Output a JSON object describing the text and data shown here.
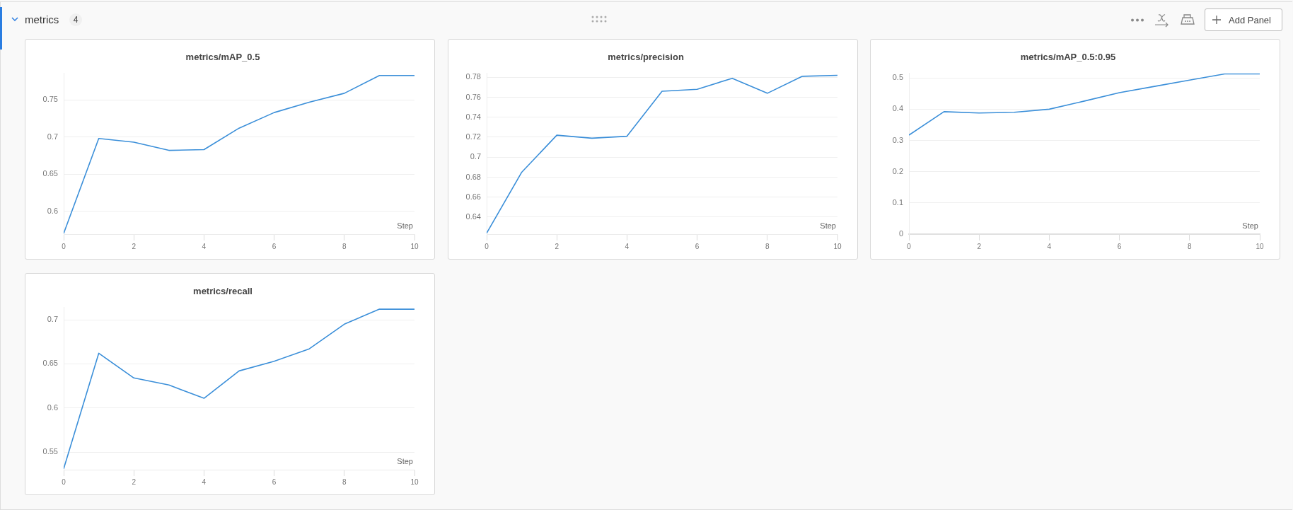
{
  "chart_data": [
    {
      "type": "other",
      "title": "metrics",
      "annotations": [
        "4",
        "Add Panel"
      ]
    },
    {
      "type": "line",
      "title": "metrics/mAP_0.5",
      "xlabel": "Step",
      "x": [
        0,
        1,
        2,
        3,
        4,
        5,
        6,
        7,
        8,
        9,
        10
      ],
      "series": [
        {
          "color": "#3b8fd9",
          "values": [
            0.57,
            0.698,
            0.693,
            0.682,
            0.683,
            0.712,
            0.733,
            0.747,
            0.759,
            0.783,
            0.783
          ]
        }
      ],
      "xlim": [
        0,
        10
      ],
      "xticks": [
        0,
        2,
        4,
        6,
        8,
        10
      ],
      "ylim": [
        0.569,
        0.786
      ],
      "yticks": [
        0.6,
        0.65,
        0.7,
        0.75
      ],
      "grid": "y"
    },
    {
      "type": "line",
      "title": "metrics/precision",
      "xlabel": "Step",
      "x": [
        0,
        1,
        2,
        3,
        4,
        5,
        6,
        7,
        8,
        9,
        10
      ],
      "series": [
        {
          "color": "#3b8fd9",
          "values": [
            0.624,
            0.685,
            0.722,
            0.719,
            0.721,
            0.766,
            0.768,
            0.779,
            0.764,
            0.781,
            0.782
          ]
        }
      ],
      "xlim": [
        0,
        10
      ],
      "xticks": [
        0,
        2,
        4,
        6,
        8,
        10
      ],
      "ylim": [
        0.623,
        0.784
      ],
      "yticks": [
        0.64,
        0.66,
        0.68,
        0.7,
        0.72,
        0.74,
        0.76,
        0.78
      ],
      "grid": "y"
    },
    {
      "type": "line",
      "title": "metrics/mAP_0.5:0.95",
      "xlabel": "Step",
      "x": [
        0,
        1,
        2,
        3,
        4,
        5,
        6,
        7,
        8,
        9,
        10
      ],
      "series": [
        {
          "color": "#3b8fd9",
          "values": [
            0.317,
            0.392,
            0.388,
            0.39,
            0.4,
            0.426,
            0.453,
            0.473,
            0.493,
            0.513,
            0.513
          ]
        }
      ],
      "xlim": [
        0,
        10
      ],
      "xticks": [
        0,
        2,
        4,
        6,
        8,
        10
      ],
      "ylim": [
        0,
        0.515
      ],
      "yticks": [
        0,
        0.1,
        0.2,
        0.3,
        0.4,
        0.5
      ],
      "grid": "y"
    },
    {
      "type": "line",
      "title": "metrics/recall",
      "xlabel": "Step",
      "x": [
        0,
        1,
        2,
        3,
        4,
        5,
        6,
        7,
        8,
        9,
        10
      ],
      "series": [
        {
          "color": "#3b8fd9",
          "values": [
            0.531,
            0.662,
            0.634,
            0.626,
            0.611,
            0.642,
            0.653,
            0.667,
            0.695,
            0.712,
            0.712
          ]
        }
      ],
      "xlim": [
        0,
        10
      ],
      "xticks": [
        0,
        2,
        4,
        6,
        8,
        10
      ],
      "ylim": [
        0.53,
        0.714
      ],
      "yticks": [
        0.55,
        0.6,
        0.65,
        0.7
      ],
      "grid": "y"
    }
  ]
}
